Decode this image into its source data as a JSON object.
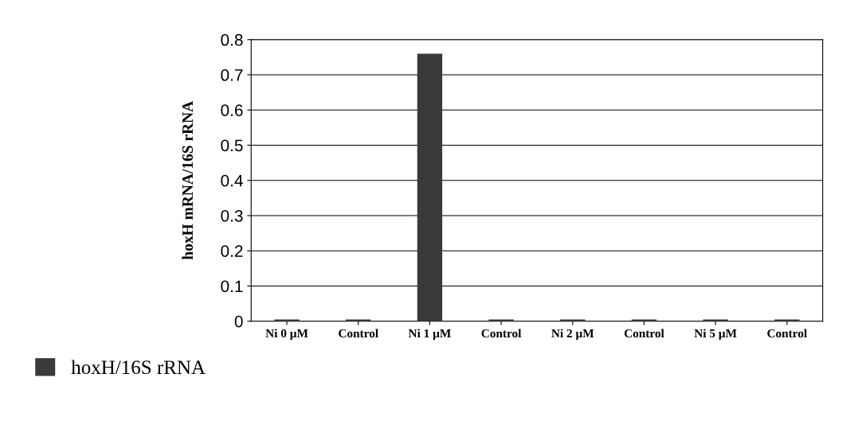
{
  "chart_data": {
    "type": "bar",
    "ylabel": "hoxH mRNA/16S rRNA",
    "categories": [
      "Ni 0 µM",
      "Control",
      "Ni 1 µM",
      "Control",
      "Ni 2 µM",
      "Control",
      "Ni 5 µM",
      "Control"
    ],
    "series": [
      {
        "name": "hoxH/16S rRNA",
        "color": "#3a3a3a",
        "values": [
          0.005,
          0.005,
          0.76,
          0.005,
          0.005,
          0.005,
          0.005,
          0.005
        ]
      }
    ],
    "ylim": [
      0,
      0.8
    ],
    "yticks": [
      0,
      0.1,
      0.2,
      0.3,
      0.4,
      0.5,
      0.6,
      0.7,
      0.8
    ],
    "grid": "y",
    "legend": "bottom left"
  }
}
